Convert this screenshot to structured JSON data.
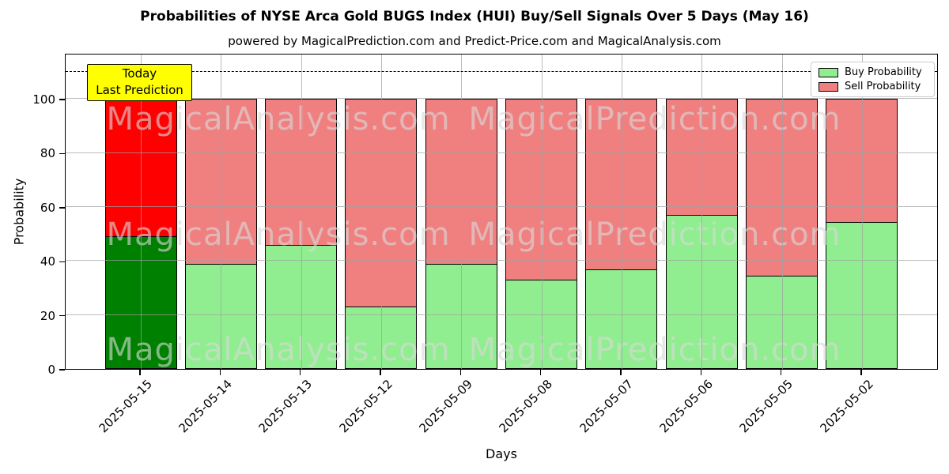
{
  "title": "Probabilities of NYSE Arca Gold BUGS Index (HUI) Buy/Sell Signals Over 5 Days (May 16)",
  "subtitle": "powered by MagicalPrediction.com and Predict-Price.com and MagicalAnalysis.com",
  "annotation": {
    "line1": "Today",
    "line2": "Last Prediction",
    "bg_color": "#ffff00"
  },
  "legend": {
    "items": [
      {
        "label": "Buy Probability",
        "color": "#90ee90"
      },
      {
        "label": "Sell Probability",
        "color": "#f08080"
      }
    ],
    "position": "upper right"
  },
  "watermarks": {
    "left_text": "MagicalAnalysis.com",
    "right_text": "MagicalPrediction.com"
  },
  "chart_data": {
    "type": "bar",
    "stacked": true,
    "title": "Probabilities of NYSE Arca Gold BUGS Index (HUI) Buy/Sell Signals Over 5 Days (May 16)",
    "xlabel": "Days",
    "ylabel": "Probability",
    "categories": [
      "2025-05-15",
      "2025-05-14",
      "2025-05-13",
      "2025-05-12",
      "2025-05-09",
      "2025-05-08",
      "2025-05-07",
      "2025-05-06",
      "2025-05-05",
      "2025-05-02"
    ],
    "series": [
      {
        "name": "Buy Probability",
        "color": "#90ee90",
        "values": [
          49,
          39,
          46,
          23,
          39,
          33,
          37,
          57,
          34.5,
          54.5
        ]
      },
      {
        "name": "Sell Probability",
        "color": "#f08080",
        "values": [
          51,
          61,
          54,
          77,
          61,
          67,
          63,
          43,
          65.5,
          45.5
        ]
      }
    ],
    "today_bar": {
      "index": 0,
      "buy_color": "#008000",
      "sell_color": "#ff0000",
      "note": "Today / Last Prediction"
    },
    "yticks": [
      0,
      20,
      40,
      60,
      80,
      100
    ],
    "ylim": [
      0,
      117
    ],
    "dashed_hline_y": 111,
    "grid": true,
    "legend_position": "upper right"
  }
}
